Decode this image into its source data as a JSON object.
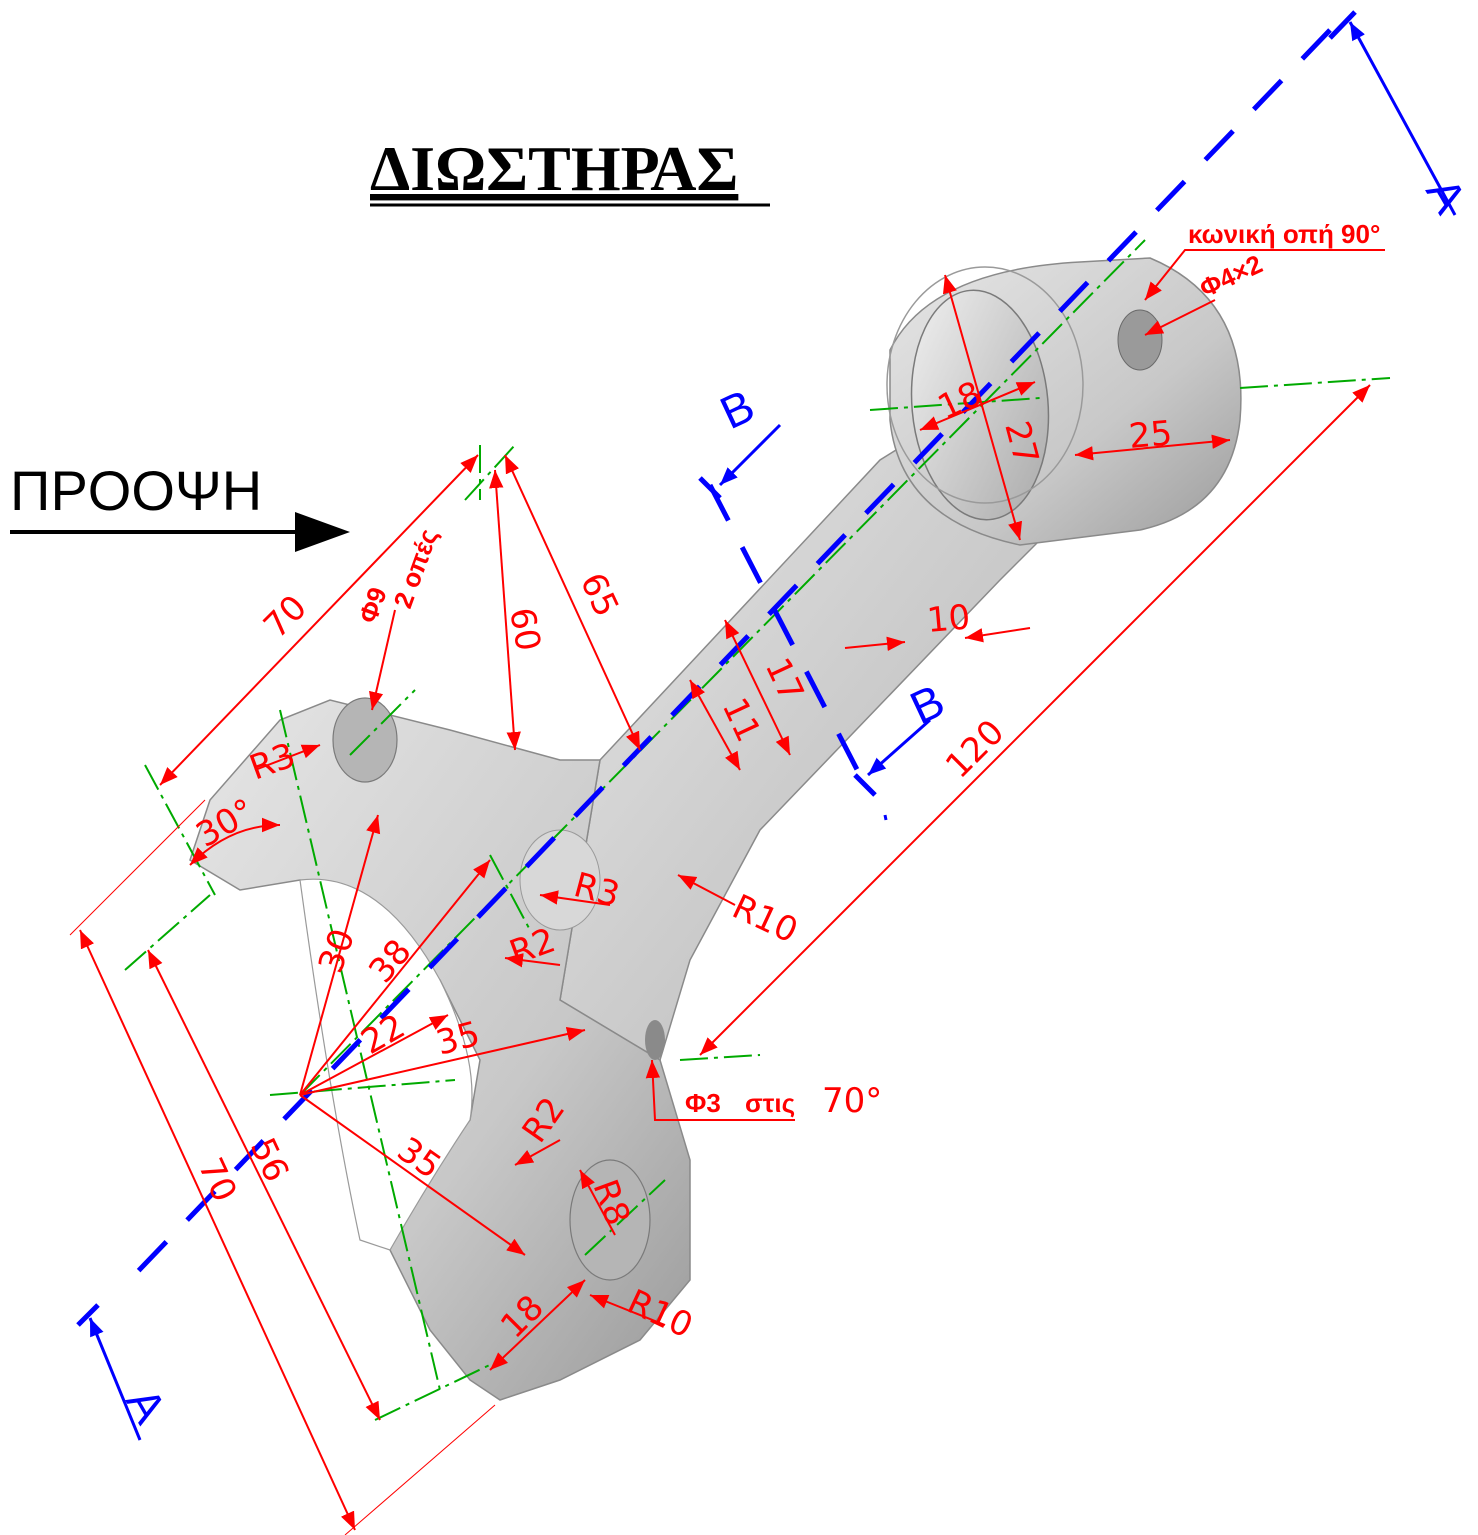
{
  "title": "ΔΙΩΣΤΗΡΑΣ",
  "view_label": "ΠΡΟΟΨΗ",
  "section_labels": {
    "a": "A",
    "b": "B"
  },
  "colors": {
    "dimension": "#ff0000",
    "centerline": "#00aa00",
    "section": "#0000ff",
    "part": "#cfcfcf"
  },
  "notes": {
    "conical_hole": "κωνική οπή 90°",
    "small_hole": "Φ4×2",
    "bolt_holes_dia": "Φ9",
    "bolt_holes_count": "2 οπές",
    "oil_hole_dia": "Φ3",
    "oil_hole_word": "στις",
    "oil_hole_angle": "70°"
  },
  "dimensions": {
    "d70_top": "70",
    "d60": "60",
    "d65": "65",
    "d18_big": "18",
    "d27": "27",
    "d25": "25",
    "d17": "17",
    "d11": "11",
    "d10": "10",
    "d120": "120",
    "r3_a": "R3",
    "r3_b": "R3",
    "r2_a": "R2",
    "r2_b": "R2",
    "r10_a": "R10",
    "r10_b": "R10",
    "r8": "R8",
    "ang30": "30°",
    "d30": "30",
    "d38": "38",
    "d22": "22",
    "d35_a": "35",
    "d35_b": "35",
    "d70_left": "70",
    "d56": "56",
    "d18_small": "18"
  }
}
